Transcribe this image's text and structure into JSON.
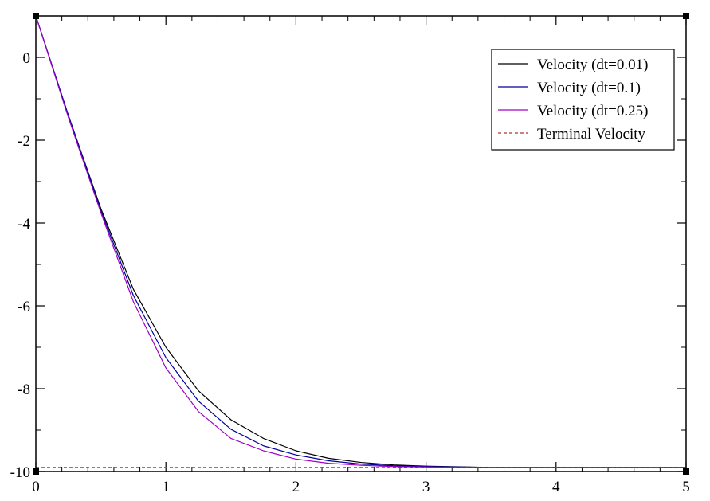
{
  "chart_data": {
    "type": "line",
    "title": "",
    "xlabel": "",
    "ylabel": "",
    "xlim": [
      0,
      5
    ],
    "ylim": [
      -10,
      1
    ],
    "x_ticks": [
      "0",
      "1",
      "2",
      "3",
      "4",
      "5"
    ],
    "y_ticks": [
      "0",
      "-2",
      "-4",
      "-6",
      "-8",
      "-10"
    ],
    "grid": false,
    "legend_position": "top-right",
    "series": [
      {
        "name": "Velocity (dt=0.01)",
        "color": "#000000",
        "dash": "solid",
        "x": [
          0,
          0.25,
          0.5,
          0.75,
          1.0,
          1.25,
          1.5,
          1.75,
          2.0,
          2.25,
          2.5,
          2.75,
          3.0,
          3.5,
          4.0,
          4.5,
          5.0
        ],
        "y": [
          1.0,
          -1.4,
          -3.65,
          -5.6,
          -7.0,
          -8.05,
          -8.75,
          -9.2,
          -9.5,
          -9.68,
          -9.78,
          -9.84,
          -9.87,
          -9.9,
          -9.9,
          -9.9,
          -9.9
        ]
      },
      {
        "name": "Velocity (dt=0.1)",
        "color": "#0000a0",
        "dash": "solid",
        "x": [
          0,
          0.25,
          0.5,
          0.75,
          1.0,
          1.25,
          1.5,
          1.75,
          2.0,
          2.25,
          2.5,
          2.75,
          3.0,
          3.5,
          4.0,
          4.5,
          5.0
        ],
        "y": [
          1.0,
          -1.4,
          -3.7,
          -5.75,
          -7.25,
          -8.3,
          -8.98,
          -9.38,
          -9.6,
          -9.74,
          -9.82,
          -9.86,
          -9.88,
          -9.9,
          -9.9,
          -9.9,
          -9.9
        ]
      },
      {
        "name": "Velocity (dt=0.25)",
        "color": "#a000c8",
        "dash": "solid",
        "x": [
          0,
          0.25,
          0.5,
          0.75,
          1.0,
          1.25,
          1.5,
          1.75,
          2.0,
          2.25,
          2.5,
          2.75,
          3.0,
          3.25,
          3.5,
          3.75,
          4.0,
          4.25,
          4.5,
          4.75,
          5.0
        ],
        "y": [
          1.0,
          -1.45,
          -3.75,
          -5.9,
          -7.5,
          -8.55,
          -9.2,
          -9.5,
          -9.7,
          -9.8,
          -9.85,
          -9.88,
          -9.89,
          -9.9,
          -9.9,
          -9.9,
          -9.9,
          -9.9,
          -9.9,
          -9.9,
          -9.9
        ]
      },
      {
        "name": "Terminal Velocity",
        "color": "#b03030",
        "dash": "dashed",
        "x": [
          0,
          5
        ],
        "y": [
          -9.9,
          -9.9
        ]
      }
    ]
  }
}
